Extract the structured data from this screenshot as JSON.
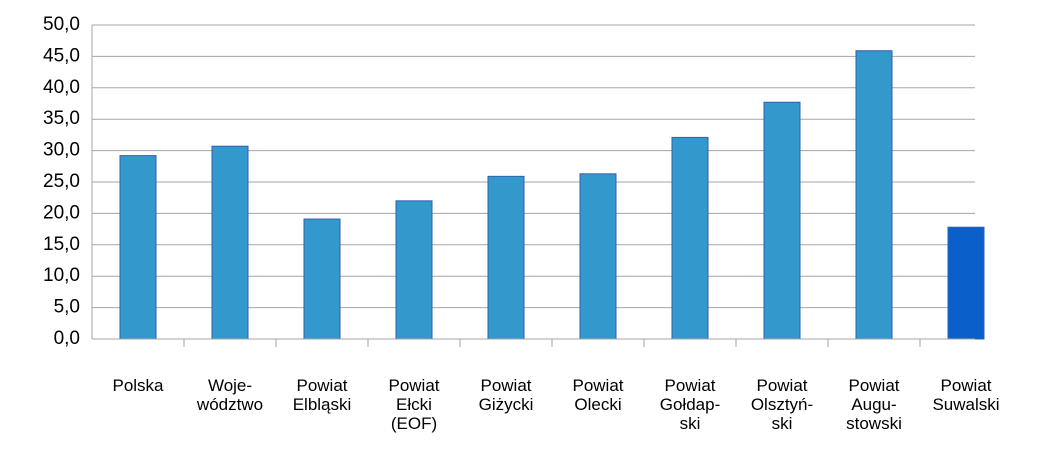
{
  "chart_data": {
    "type": "bar",
    "categories": [
      "Polska",
      "Woje-\nwództwo",
      "Powiat\nElbląski",
      "Powiat\nEłcki\n(EOF)",
      "Powiat\nGiżycki",
      "Powiat\nOlecki",
      "Powiat\nGołdap-\nski",
      "Powiat\nOlsztyń-\nski",
      "Powiat\nAugu-\nstowski",
      "Powiat\nSuwalski"
    ],
    "values": [
      29.2,
      30.7,
      19.1,
      22.0,
      25.9,
      26.3,
      32.1,
      37.7,
      45.9,
      17.8
    ],
    "colors": [
      "#3399cc",
      "#3399cc",
      "#3399cc",
      "#3399cc",
      "#3399cc",
      "#3399cc",
      "#3399cc",
      "#3399cc",
      "#3399cc",
      "#0a5fc8"
    ],
    "ylim": [
      0,
      50
    ],
    "yticks": [
      {
        "value": 0,
        "label": "0,0"
      },
      {
        "value": 5,
        "label": "5,0"
      },
      {
        "value": 10,
        "label": "10,0"
      },
      {
        "value": 15,
        "label": "15,0"
      },
      {
        "value": 20,
        "label": "20,0"
      },
      {
        "value": 25,
        "label": "25,0"
      },
      {
        "value": 30,
        "label": "30,0"
      },
      {
        "value": 35,
        "label": "35,0"
      },
      {
        "value": 40,
        "label": "40,0"
      },
      {
        "value": 45,
        "label": "45,0"
      },
      {
        "value": 50,
        "label": "50,0"
      }
    ],
    "grid": true
  }
}
